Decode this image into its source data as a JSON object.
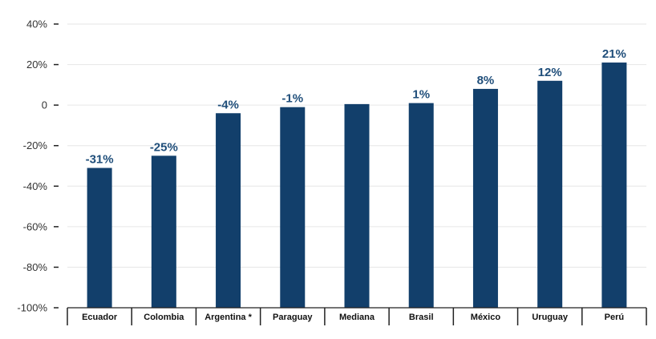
{
  "chart_data": {
    "type": "bar",
    "categories": [
      "Ecuador",
      "Colombia",
      "Argentina *",
      "Paraguay",
      "Mediana",
      "Brasil",
      "México",
      "Uruguay",
      "Perú"
    ],
    "values": [
      -31,
      -25,
      -4,
      -1,
      0.5,
      1,
      8,
      12,
      21
    ],
    "data_labels": [
      "-31%",
      "-25%",
      "-4%",
      "-1%",
      "",
      "1%",
      "8%",
      "12%",
      "21%"
    ],
    "y_ticks": [
      40,
      20,
      0,
      -20,
      -40,
      -60,
      -80,
      -100
    ],
    "y_tick_labels": [
      "40%",
      "20%",
      "0",
      "-20%",
      "-40%",
      "-60%",
      "-80%",
      "-100%"
    ],
    "ylim": [
      -100,
      40
    ],
    "title": "",
    "xlabel": "",
    "ylabel": "",
    "grid": true,
    "legend": "none",
    "colors": {
      "bar": "#123f6b",
      "data_label": "#1f4e7a",
      "grid": "#e6e6e6",
      "axis": "#222222"
    }
  }
}
